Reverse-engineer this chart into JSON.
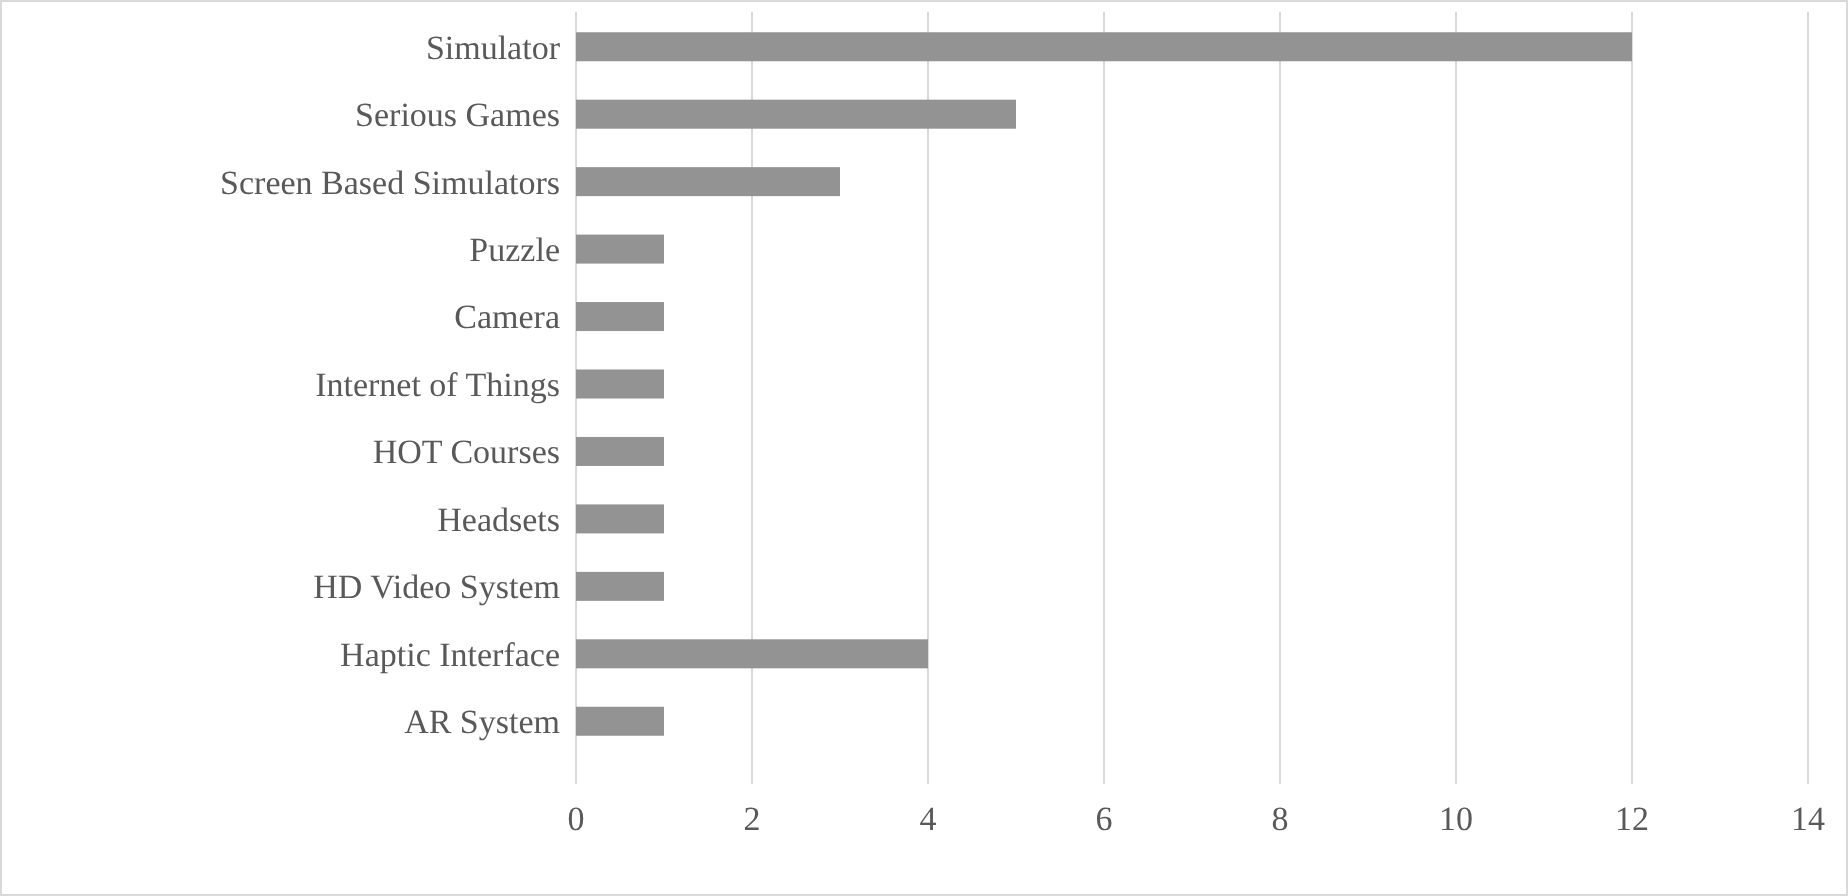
{
  "chart_data": {
    "type": "bar",
    "orientation": "horizontal",
    "categories": [
      "Simulator",
      "Serious Games",
      "Screen Based Simulators",
      "Puzzle",
      "Camera",
      "Internet of Things",
      "HOT Courses",
      "Headsets",
      "HD Video System",
      "Haptic Interface",
      "AR System"
    ],
    "values": [
      12,
      5,
      3,
      1,
      1,
      1,
      1,
      1,
      1,
      4,
      1
    ],
    "color": "#939393",
    "xlim": [
      0,
      14
    ],
    "xticks": [
      0,
      2,
      4,
      6,
      8,
      10,
      12,
      14
    ],
    "grid": "x"
  }
}
